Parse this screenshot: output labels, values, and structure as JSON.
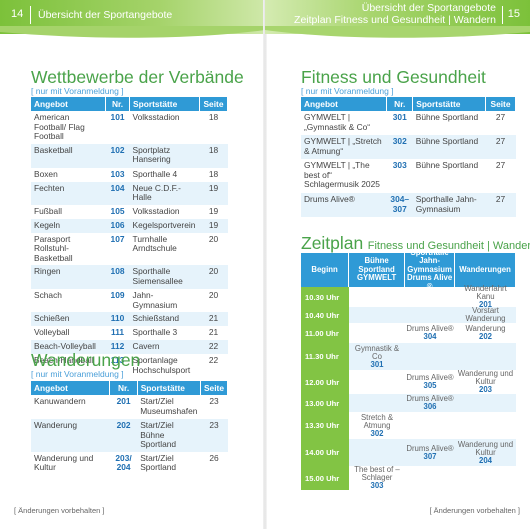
{
  "left": {
    "page_number": "14",
    "header": "Übersicht der Sportangebote",
    "title": "Wettbewerbe der Verbände",
    "note": "[ nur mit Voranmeldung ]",
    "table_headers": [
      "Angebot",
      "Nr.",
      "Sportstätte",
      "Seite"
    ],
    "competitions": [
      {
        "offer": "American Football/ Flag Football",
        "nr": "101",
        "venue": "Volksstadion",
        "page": "18"
      },
      {
        "offer": "Basketball",
        "nr": "102",
        "venue": "Sportplatz Hansering",
        "page": "18"
      },
      {
        "offer": "Boxen",
        "nr": "103",
        "venue": "Sporthalle 4",
        "page": "18"
      },
      {
        "offer": "Fechten",
        "nr": "104",
        "venue": "Neue C.D.F.-Halle",
        "page": "19"
      },
      {
        "offer": "Fußball",
        "nr": "105",
        "venue": "Volksstadion",
        "page": "19"
      },
      {
        "offer": "Kegeln",
        "nr": "106",
        "venue": "Kegelsportverein",
        "page": "19"
      },
      {
        "offer": "Parasport Rollstuhl-Basketball",
        "nr": "107",
        "venue": "Turnhalle Arndtschule",
        "page": "20"
      },
      {
        "offer": "Ringen",
        "nr": "108",
        "venue": "Sporthalle Siemensallee",
        "page": "20"
      },
      {
        "offer": "Schach",
        "nr": "109",
        "venue": "Jahn-Gymnasium",
        "page": "20"
      },
      {
        "offer": "Schießen",
        "nr": "110",
        "venue": "Schießstand",
        "page": "21"
      },
      {
        "offer": "Volleyball",
        "nr": "111",
        "venue": "Sporthalle 3",
        "page": "21"
      },
      {
        "offer": "Beach-Volleyball",
        "nr": "112",
        "venue": "Cavern",
        "page": "22"
      },
      {
        "offer": "Beach-Handball",
        "nr": "113",
        "venue": "Sportanlage Hochschulsport",
        "page": "22"
      }
    ],
    "hiking_title": "Wanderungen",
    "hiking_note": "[ nur mit Voranmeldung ]",
    "hiking": [
      {
        "offer": "Kanuwandern",
        "nr": "201",
        "venue": "Start/Ziel Museumshafen",
        "page": "23"
      },
      {
        "offer": "Wanderung",
        "nr": "202",
        "venue": "Start/Ziel Bühne Sportland",
        "page": "23"
      },
      {
        "offer": "Wanderung und Kultur",
        "nr": "203/ 204",
        "venue": "Start/Ziel Sportland",
        "page": "26"
      }
    ],
    "footer": "[ Änderungen vorbehalten ]"
  },
  "right": {
    "page_number": "15",
    "header_line1": "Übersicht der Sportangebote",
    "header_line2": "Zeitplan Fitness und Gesundheit | Wandern",
    "title": "Fitness und Gesundheit",
    "note": "[ nur mit Voranmeldung ]",
    "fitness": [
      {
        "offer": "GYMWELT | „Gymnastik & Co“",
        "nr": "301",
        "venue": "Bühne Sportland",
        "page": "27"
      },
      {
        "offer": "GYMWELT | „Stretch & Atmung“",
        "nr": "302",
        "venue": "Bühne Sportland",
        "page": "27"
      },
      {
        "offer": "GYMWELT | „The best of“ Schlagermusik 2025",
        "nr": "303",
        "venue": "Bühne Sportland",
        "page": "27"
      },
      {
        "offer": "Drums Alive®",
        "nr": "304– 307",
        "venue": "Sporthalle Jahn-Gymnasium",
        "page": "27"
      }
    ],
    "schedule_title_main": "Zeitplan",
    "schedule_title_sub": "Fitness und Gesundheit | Wandern",
    "schedule_headers": [
      "Beginn",
      "Bühne Sportland GYMWELT",
      "Sporthalle Jahn-Gymnasium Drums Alive ®",
      "Wanderungen"
    ],
    "schedule": [
      {
        "time": "10.30 Uhr",
        "gym": "",
        "gym_nr": "",
        "drums": "",
        "drums_nr": "",
        "hike": "Wanderfahrt Kanu",
        "hike_nr": "201"
      },
      {
        "time": "10.40 Uhr",
        "gym": "",
        "gym_nr": "",
        "drums": "",
        "drums_nr": "",
        "hike": "Vorstart Wanderung",
        "hike_nr": ""
      },
      {
        "time": "11.00 Uhr",
        "gym": "",
        "gym_nr": "",
        "drums": "Drums Alive®",
        "drums_nr": "304",
        "hike": "Wanderung",
        "hike_nr": "202"
      },
      {
        "time": "11.30 Uhr",
        "gym": "Gymnastik & Co",
        "gym_nr": "301",
        "drums": "",
        "drums_nr": "",
        "hike": "",
        "hike_nr": ""
      },
      {
        "time": "12.00 Uhr",
        "gym": "",
        "gym_nr": "",
        "drums": "Drums Alive®",
        "drums_nr": "305",
        "hike": "Wanderung und Kultur",
        "hike_nr": "203"
      },
      {
        "time": "13.00 Uhr",
        "gym": "",
        "gym_nr": "",
        "drums": "Drums Alive®",
        "drums_nr": "306",
        "hike": "",
        "hike_nr": ""
      },
      {
        "time": "13.30 Uhr",
        "gym": "Stretch & Atmung",
        "gym_nr": "302",
        "drums": "",
        "drums_nr": "",
        "hike": "",
        "hike_nr": ""
      },
      {
        "time": "14.00 Uhr",
        "gym": "",
        "gym_nr": "",
        "drums": "Drums Alive®",
        "drums_nr": "307",
        "hike": "Wanderung und Kultur",
        "hike_nr": "204"
      },
      {
        "time": "15.00 Uhr",
        "gym": "The best of – Schlager",
        "gym_nr": "303",
        "drums": "",
        "drums_nr": "",
        "hike": "",
        "hike_nr": ""
      }
    ],
    "footer": "[ Änderungen vorbehalten ]"
  },
  "colors": {
    "green": "#7cc13a",
    "blue": "#2f9ad6",
    "number_blue": "#1f6fb2",
    "row_tint": "#e6f3fb"
  }
}
